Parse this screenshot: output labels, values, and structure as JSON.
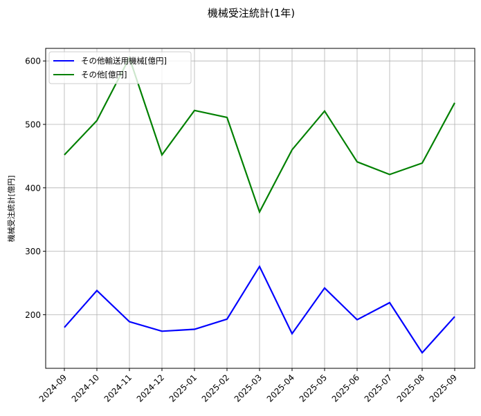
{
  "chart_data": {
    "type": "line",
    "title": "機械受注統計(1年)",
    "xlabel": "",
    "ylabel": "機械受注統計[億円]",
    "categories": [
      "2024-09",
      "2024-10",
      "2024-11",
      "2024-12",
      "2025-01",
      "2025-02",
      "2025-03",
      "2025-04",
      "2025-05",
      "2025-06",
      "2025-07",
      "2025-08",
      "2025-09"
    ],
    "series": [
      {
        "name": "その他輸送用機械[億円]",
        "color": "#0000ff",
        "values": [
          180,
          238,
          189,
          174,
          177,
          193,
          276,
          170,
          242,
          192,
          219,
          140,
          197
        ]
      },
      {
        "name": "その他[億円]",
        "color": "#008000",
        "values": [
          452,
          506,
          605,
          452,
          522,
          511,
          362,
          460,
          521,
          441,
          421,
          439,
          534
        ]
      }
    ],
    "yticks": [
      200,
      300,
      400,
      500,
      600
    ],
    "ylim": [
      116,
      620
    ],
    "grid": true,
    "legend_position": "upper left"
  }
}
